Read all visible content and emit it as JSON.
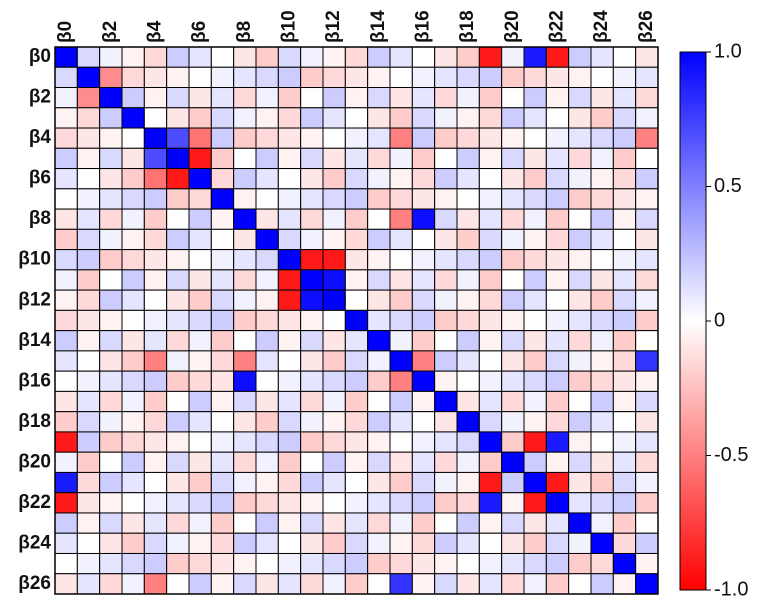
{
  "chart_data": {
    "type": "heatmap",
    "xcategories": [
      "β0",
      null,
      "β2",
      null,
      "β4",
      null,
      "β6",
      null,
      "β8",
      null,
      "β10",
      null,
      "β12",
      null,
      "β14",
      null,
      "β16",
      null,
      "β18",
      null,
      "β20",
      null,
      "β22",
      null,
      "β24",
      null,
      "β26"
    ],
    "ycategories": [
      "β0",
      null,
      "β2",
      null,
      "β4",
      null,
      "β6",
      null,
      "β8",
      null,
      "β10",
      null,
      "β12",
      null,
      "β14",
      null,
      "β16",
      null,
      "β18",
      null,
      "β20",
      null,
      "β22",
      null,
      "β24",
      null,
      "β26"
    ],
    "values": [
      [
        1,
        0.15,
        0.05,
        -0.05,
        -0.15,
        0.2,
        0.1,
        0,
        -0.1,
        -0.2,
        0.15,
        0.05,
        -0.05,
        -0.15,
        0.2,
        0.1,
        0,
        -0.1,
        -0.2,
        -0.9,
        0.05,
        0.9,
        -0.9,
        0.2,
        0.1,
        0,
        -0.1
      ],
      [
        0.15,
        1,
        -0.45,
        -0.15,
        -0.1,
        -0.05,
        0,
        0.05,
        0.1,
        0.15,
        0.2,
        -0.2,
        -0.15,
        -0.1,
        -0.05,
        0,
        0.05,
        0.1,
        0.15,
        0.2,
        -0.2,
        -0.15,
        -0.1,
        -0.05,
        0,
        0.05,
        0.1
      ],
      [
        0.05,
        -0.45,
        1,
        0.2,
        -0.05,
        0.15,
        -0.1,
        0.1,
        -0.15,
        0.05,
        -0.2,
        0,
        0.2,
        -0.05,
        0.15,
        -0.1,
        0.1,
        -0.15,
        0.05,
        -0.2,
        0,
        0.2,
        -0.05,
        0.15,
        -0.1,
        0.1,
        -0.15
      ],
      [
        -0.05,
        -0.15,
        0.2,
        1,
        0,
        -0.1,
        -0.2,
        0.15,
        0.05,
        -0.05,
        -0.15,
        0.2,
        0.1,
        0,
        -0.1,
        -0.2,
        0.15,
        0.05,
        -0.05,
        -0.15,
        0.2,
        0.1,
        0,
        -0.1,
        -0.2,
        0.15,
        0.05
      ],
      [
        -0.15,
        -0.1,
        -0.05,
        0,
        1,
        0.7,
        -0.55,
        0.2,
        -0.2,
        -0.15,
        -0.1,
        -0.05,
        0,
        0.05,
        0.1,
        -0.5,
        0.2,
        -0.2,
        -0.15,
        -0.1,
        -0.05,
        0,
        0.05,
        0.1,
        0.15,
        0.2,
        -0.5
      ],
      [
        0.2,
        -0.05,
        0.15,
        -0.1,
        0.7,
        1,
        -0.9,
        -0.2,
        0,
        0.2,
        -0.05,
        0.15,
        -0.1,
        0.1,
        -0.15,
        0.05,
        -0.2,
        0,
        0.2,
        -0.05,
        0.15,
        -0.1,
        0.1,
        -0.15,
        0.05,
        -0.2,
        0
      ],
      [
        0.1,
        0,
        -0.1,
        -0.2,
        -0.55,
        -0.9,
        1,
        -0.15,
        0.2,
        0.1,
        0,
        -0.1,
        -0.2,
        0.15,
        0.05,
        -0.05,
        -0.15,
        0.2,
        0.1,
        0,
        -0.1,
        -0.2,
        0.15,
        0.05,
        -0.05,
        -0.15,
        0.2
      ],
      [
        0,
        0.05,
        0.1,
        0.15,
        0.2,
        -0.2,
        -0.15,
        1,
        -0.05,
        0,
        0.05,
        0.1,
        0.15,
        0.2,
        -0.2,
        -0.15,
        -0.1,
        -0.05,
        0,
        0.05,
        0.1,
        0.15,
        0.2,
        -0.2,
        -0.15,
        -0.1,
        -0.05
      ],
      [
        -0.1,
        0.1,
        -0.15,
        0.05,
        -0.2,
        0,
        0.2,
        -0.05,
        1,
        -0.1,
        0.1,
        -0.15,
        0.05,
        -0.2,
        0,
        -0.5,
        0.95,
        0.15,
        -0.1,
        0.1,
        -0.15,
        0.05,
        -0.2,
        0,
        0.2,
        -0.05,
        0.15
      ],
      [
        -0.2,
        0.15,
        0.05,
        -0.05,
        -0.15,
        0.2,
        0.1,
        0,
        -0.1,
        1,
        0.15,
        0.05,
        -0.05,
        -0.15,
        0.2,
        0.1,
        0,
        -0.1,
        -0.2,
        0.15,
        0.05,
        -0.05,
        -0.15,
        0.2,
        0.1,
        0,
        -0.1
      ],
      [
        0.15,
        0.2,
        -0.2,
        -0.15,
        -0.1,
        -0.05,
        0,
        0.05,
        0.1,
        0.15,
        1,
        -0.9,
        -0.9,
        -0.1,
        -0.05,
        0,
        0.05,
        0.1,
        0.15,
        0.2,
        -0.2,
        -0.15,
        -0.1,
        -0.05,
        0,
        0.05,
        0.1
      ],
      [
        0.05,
        -0.2,
        0,
        0.2,
        -0.05,
        0.15,
        -0.1,
        0.1,
        -0.15,
        0.05,
        -0.9,
        1,
        0.95,
        -0.05,
        0.15,
        -0.1,
        0.1,
        -0.15,
        0.05,
        -0.2,
        0,
        0.2,
        -0.05,
        0.15,
        -0.1,
        0.1,
        -0.15
      ],
      [
        -0.05,
        -0.15,
        0.2,
        0.1,
        0,
        -0.1,
        -0.2,
        0.15,
        0.05,
        -0.05,
        -0.9,
        0.95,
        1,
        0,
        -0.1,
        -0.2,
        0.15,
        0.05,
        -0.05,
        -0.15,
        0.2,
        0.1,
        0,
        -0.1,
        -0.2,
        0.15,
        0.05
      ],
      [
        -0.15,
        -0.1,
        -0.05,
        0,
        0.05,
        0.1,
        0.15,
        0.2,
        -0.2,
        -0.15,
        -0.1,
        -0.05,
        0,
        1,
        0.1,
        0.15,
        0.2,
        -0.2,
        -0.15,
        -0.1,
        -0.05,
        0,
        0.05,
        0.1,
        0.15,
        0.2,
        -0.2
      ],
      [
        0.2,
        -0.05,
        0.15,
        -0.1,
        0.1,
        -0.15,
        0.05,
        -0.2,
        0,
        0.2,
        -0.05,
        0.15,
        -0.1,
        0.1,
        1,
        0.05,
        -0.2,
        0,
        0.2,
        -0.05,
        0.15,
        -0.1,
        0.1,
        -0.15,
        0.05,
        -0.2,
        0
      ],
      [
        0.1,
        0,
        -0.1,
        -0.2,
        -0.5,
        0.05,
        -0.05,
        -0.15,
        -0.5,
        0.1,
        0,
        -0.1,
        -0.2,
        0.15,
        0.05,
        1,
        -0.5,
        0.2,
        0.1,
        0,
        -0.1,
        -0.2,
        0.15,
        0.05,
        -0.05,
        -0.15,
        0.8
      ],
      [
        0,
        0.05,
        0.1,
        0.15,
        0.2,
        -0.2,
        -0.15,
        -0.1,
        0.95,
        0,
        0.05,
        0.1,
        0.15,
        0.2,
        -0.2,
        -0.5,
        1,
        -0.05,
        0,
        0.05,
        0.1,
        0.15,
        0.2,
        -0.2,
        -0.15,
        -0.1,
        -0.05
      ],
      [
        -0.1,
        0.1,
        -0.15,
        0.05,
        -0.2,
        0,
        0.2,
        -0.05,
        0.15,
        -0.1,
        0.1,
        -0.15,
        0.05,
        -0.2,
        0,
        0.2,
        -0.05,
        1,
        -0.1,
        0.1,
        -0.15,
        0.05,
        -0.2,
        0,
        0.2,
        -0.05,
        0.15
      ],
      [
        -0.2,
        0.15,
        0.05,
        -0.05,
        -0.15,
        0.2,
        0.1,
        0,
        -0.1,
        -0.2,
        0.15,
        0.05,
        -0.05,
        -0.15,
        0.2,
        0.1,
        0,
        -0.1,
        1,
        0.15,
        0.05,
        -0.05,
        -0.15,
        0.2,
        0.1,
        0,
        -0.1
      ],
      [
        -0.9,
        0.2,
        -0.2,
        -0.15,
        -0.1,
        -0.05,
        0,
        0.05,
        0.1,
        0.15,
        0.2,
        -0.2,
        -0.15,
        -0.1,
        -0.05,
        0,
        0.05,
        0.1,
        0.15,
        1,
        -0.2,
        -0.9,
        0.9,
        -0.05,
        0,
        0.05,
        0.1
      ],
      [
        0.05,
        -0.2,
        0,
        0.2,
        -0.05,
        0.15,
        -0.1,
        0.1,
        -0.15,
        0.05,
        -0.2,
        0,
        0.2,
        -0.05,
        0.15,
        -0.1,
        0.1,
        -0.15,
        0.05,
        -0.2,
        1,
        0.2,
        -0.05,
        0.15,
        -0.1,
        0.1,
        -0.15
      ],
      [
        0.9,
        -0.15,
        0.2,
        0.1,
        0,
        -0.1,
        -0.2,
        0.15,
        0.05,
        -0.05,
        -0.15,
        0.2,
        0.1,
        0,
        -0.1,
        -0.2,
        0.15,
        0.05,
        -0.05,
        -0.9,
        0.2,
        1,
        -0.9,
        -0.1,
        -0.2,
        0.15,
        0.05
      ],
      [
        -0.9,
        -0.1,
        -0.05,
        0,
        0.05,
        0.1,
        0.15,
        0.2,
        -0.2,
        -0.15,
        -0.1,
        -0.05,
        0,
        0.05,
        0.1,
        0.15,
        0.2,
        -0.2,
        -0.15,
        0.9,
        -0.05,
        -0.9,
        1,
        0.1,
        0.15,
        0.2,
        -0.2
      ],
      [
        0.2,
        -0.05,
        0.15,
        -0.1,
        0.1,
        -0.15,
        0.05,
        -0.2,
        0,
        0.2,
        -0.05,
        0.15,
        -0.1,
        0.1,
        -0.15,
        0.05,
        -0.2,
        0,
        0.2,
        -0.05,
        0.15,
        -0.1,
        0.1,
        1,
        0.05,
        -0.2,
        0
      ],
      [
        0.1,
        0,
        -0.1,
        -0.2,
        0.15,
        0.05,
        -0.05,
        -0.15,
        0.2,
        0.1,
        0,
        -0.1,
        -0.2,
        0.15,
        0.05,
        -0.05,
        -0.15,
        0.2,
        0.1,
        0,
        -0.1,
        -0.2,
        0.15,
        0.05,
        1,
        -0.15,
        0.2
      ],
      [
        0,
        0.05,
        0.1,
        0.15,
        0.2,
        -0.2,
        -0.15,
        -0.1,
        -0.05,
        0,
        0.05,
        0.1,
        0.15,
        0.2,
        -0.2,
        -0.15,
        -0.1,
        -0.05,
        0,
        0.05,
        0.1,
        0.15,
        0.2,
        -0.2,
        -0.15,
        1,
        -0.05
      ],
      [
        -0.1,
        0.1,
        -0.15,
        0.05,
        -0.5,
        0,
        0.2,
        -0.05,
        0.15,
        -0.1,
        0.1,
        -0.15,
        0.05,
        -0.2,
        0,
        0.8,
        -0.05,
        0.15,
        -0.1,
        0.1,
        -0.15,
        0.05,
        -0.2,
        0,
        0.2,
        -0.05,
        1
      ]
    ],
    "colorbar": {
      "lim": [
        -1,
        1
      ],
      "ticks": [
        {
          "value": 1,
          "label": "1.0"
        },
        0.5,
        0,
        -0.5,
        {
          "value": -1,
          "label": "-1.0"
        }
      ],
      "colors": [
        "#ff0000",
        "#ffffff",
        "#0000ff"
      ]
    }
  }
}
